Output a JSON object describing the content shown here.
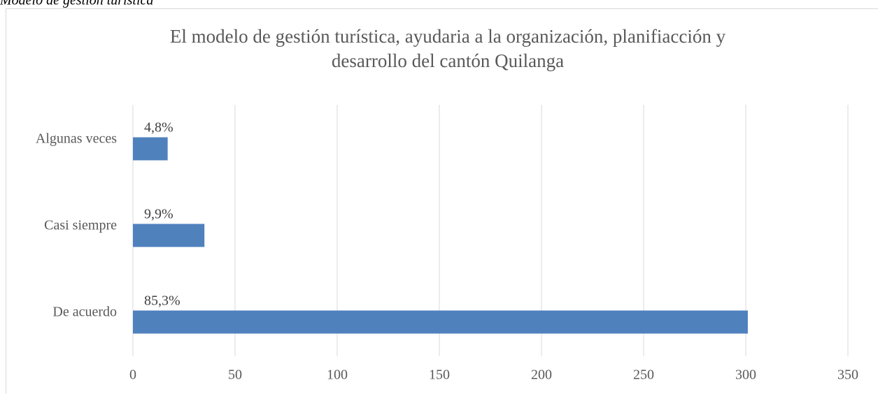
{
  "caption": "Modelo de gestión turística",
  "chart_data": {
    "type": "hbar",
    "title": [
      "El modelo de gestión turística, ayudaria a  la organización, planifiacción y",
      "desarrollo del cantón Quilanga"
    ],
    "categories": [
      "Algunas veces",
      "Casi siempre",
      "De acuerdo"
    ],
    "values": [
      17,
      35,
      301
    ],
    "value_labels": [
      "4,8%",
      "9,9%",
      "85,3%"
    ],
    "color": "#4f81bd",
    "xlim": [
      0,
      350
    ],
    "xticks": [
      0,
      50,
      100,
      150,
      200,
      250,
      300,
      350
    ],
    "grid": true
  }
}
